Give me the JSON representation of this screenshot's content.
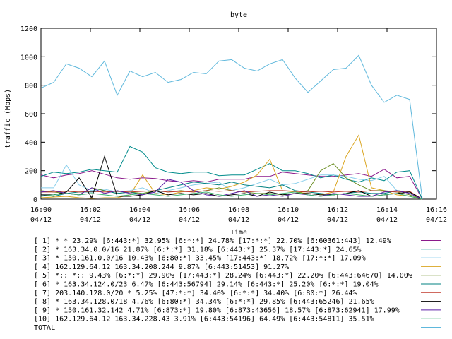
{
  "chart_data": {
    "type": "line",
    "title": "byte",
    "xlabel": "Time",
    "ylabel": "traffic (Mbps)",
    "ylim": [
      0,
      1200
    ],
    "yticks": [
      0,
      200,
      400,
      600,
      800,
      1000,
      1200
    ],
    "xlim": [
      0,
      30
    ],
    "xticks": [
      {
        "x": 0,
        "time": "16:00",
        "date": "04/12"
      },
      {
        "x": 4,
        "time": "16:02",
        "date": "04/12"
      },
      {
        "x": 8,
        "time": "16:04",
        "date": "04/12"
      },
      {
        "x": 12,
        "time": "16:06",
        "date": "04/12"
      },
      {
        "x": 16,
        "time": "16:08",
        "date": "04/12"
      },
      {
        "x": 20,
        "time": "16:10",
        "date": "04/12"
      },
      {
        "x": 24,
        "time": "16:12",
        "date": "04/12"
      },
      {
        "x": 28,
        "time": "16:14",
        "date": "04/12"
      },
      {
        "x": 32,
        "time": "16:16",
        "date": "04/12"
      }
    ],
    "grid": false,
    "legend_position": "bottom",
    "series": [
      {
        "label": "[ 1] * * 23.29%  [6:443:*] 32.95% [6:*:*] 24.78% [17:*:*] 22.70% [6:60361:443] 12.49%",
        "color": "#8b1a8b",
        "values": [
          170,
          150,
          170,
          180,
          200,
          175,
          150,
          140,
          150,
          145,
          130,
          120,
          130,
          120,
          140,
          140,
          140,
          160,
          160,
          190,
          180,
          170,
          160,
          160,
          170,
          180,
          160,
          210,
          150,
          160,
          0
        ]
      },
      {
        "label": "[ 2] * 163.34.0.0/16 21.87%  [6:*:*] 31.18% [6:443:*] 25.37% [17:443:*] 24.65%",
        "color": "#008b8b",
        "values": [
          160,
          190,
          180,
          190,
          210,
          200,
          190,
          370,
          330,
          220,
          190,
          180,
          190,
          190,
          165,
          170,
          170,
          210,
          250,
          200,
          200,
          180,
          150,
          170,
          140,
          120,
          150,
          130,
          190,
          200,
          0
        ]
      },
      {
        "label": "[ 3] * 150.161.0.0/16 10.43%  [6:80:*] 33.45% [17:443:*] 18.72% [17:*:*] 17.09%",
        "color": "#87ceeb",
        "values": [
          80,
          80,
          240,
          100,
          60,
          70,
          50,
          60,
          80,
          40,
          60,
          80,
          100,
          110,
          120,
          60,
          80,
          110,
          140,
          100,
          110,
          140,
          170,
          170,
          160,
          140,
          130,
          160,
          60,
          50,
          0
        ]
      },
      {
        "label": "[ 4] 162.129.64.12 163.34.208.244 9.87%  [6:443:51453] 91.27%",
        "color": "#daa520",
        "values": [
          10,
          15,
          20,
          10,
          5,
          10,
          10,
          30,
          170,
          40,
          30,
          50,
          60,
          80,
          70,
          90,
          120,
          170,
          280,
          60,
          50,
          40,
          30,
          50,
          300,
          450,
          80,
          60,
          30,
          20,
          0
        ]
      },
      {
        "label": "[ 5] *:: *:: 9.43%  [6:*:*] 29.90% [17:443:*] 28.24% [6:443:*] 22.20% [6:443:64670] 14.00%",
        "color": "#6b8e23",
        "values": [
          60,
          50,
          40,
          30,
          80,
          60,
          40,
          50,
          40,
          60,
          50,
          60,
          50,
          60,
          80,
          60,
          50,
          40,
          40,
          30,
          40,
          60,
          200,
          250,
          150,
          100,
          60,
          60,
          50,
          30,
          0
        ]
      },
      {
        "label": "[ 6] * 163.34.124.0/23 6.47%  [6:443:56794] 29.14% [6:443:*] 25.20% [6:*:*] 19.04%",
        "color": "#008080",
        "values": [
          30,
          20,
          40,
          50,
          50,
          60,
          40,
          50,
          30,
          60,
          80,
          100,
          120,
          110,
          100,
          120,
          100,
          90,
          80,
          100,
          60,
          50,
          40,
          30,
          40,
          50,
          40,
          40,
          60,
          50,
          0
        ]
      },
      {
        "label": "[ 7] 203.140.128.0/20 * 5.25%  [47:*:*] 34.40% [6:*:*] 34.40% [6:80:*] 26.44%",
        "color": "#c0392b",
        "values": [
          50,
          50,
          55,
          50,
          55,
          50,
          55,
          50,
          55,
          60,
          50,
          55,
          50,
          60,
          55,
          60,
          50,
          55,
          60,
          60,
          55,
          50,
          55,
          50,
          55,
          50,
          60,
          55,
          50,
          55,
          0
        ]
      },
      {
        "label": "[ 8] * 163.34.128.0/18 4.76%  [6:80:*] 34.34% [6:*:*] 29.85% [6:443:65246] 21.65%",
        "color": "#000000",
        "values": [
          30,
          30,
          50,
          150,
          10,
          300,
          20,
          20,
          30,
          60,
          30,
          40,
          30,
          40,
          20,
          30,
          40,
          20,
          50,
          30,
          40,
          40,
          30,
          30,
          40,
          60,
          20,
          30,
          40,
          50,
          0
        ]
      },
      {
        "label": "[ 9] * 150.161.32.142 4.71%  [6:873:*] 19.80% [6:873:43656] 18.57% [6:873:62941] 17.99%",
        "color": "#5b1fa6",
        "values": [
          50,
          60,
          40,
          30,
          80,
          40,
          60,
          40,
          30,
          50,
          140,
          120,
          60,
          30,
          20,
          40,
          60,
          20,
          30,
          20,
          40,
          30,
          20,
          40,
          30,
          20,
          20,
          50,
          60,
          40,
          0
        ]
      },
      {
        "label": "[10] 162.129.64.12 163.34.228.43 3.91%  [6:443:54196] 64.49% [6:443:54811] 35.51%",
        "color": "#3cb371",
        "values": [
          20,
          30,
          40,
          30,
          40,
          30,
          20,
          30,
          40,
          30,
          20,
          30,
          40,
          50,
          30,
          20,
          30,
          40,
          30,
          40,
          50,
          30,
          20,
          30,
          40,
          30,
          20,
          30,
          40,
          20,
          0
        ]
      },
      {
        "label": "TOTAL",
        "color": "#5fb8dc",
        "values": [
          780,
          820,
          950,
          920,
          860,
          970,
          730,
          900,
          860,
          890,
          820,
          840,
          890,
          880,
          970,
          980,
          920,
          900,
          950,
          980,
          850,
          750,
          830,
          910,
          920,
          1010,
          800,
          680,
          730,
          700,
          0
        ]
      }
    ]
  }
}
